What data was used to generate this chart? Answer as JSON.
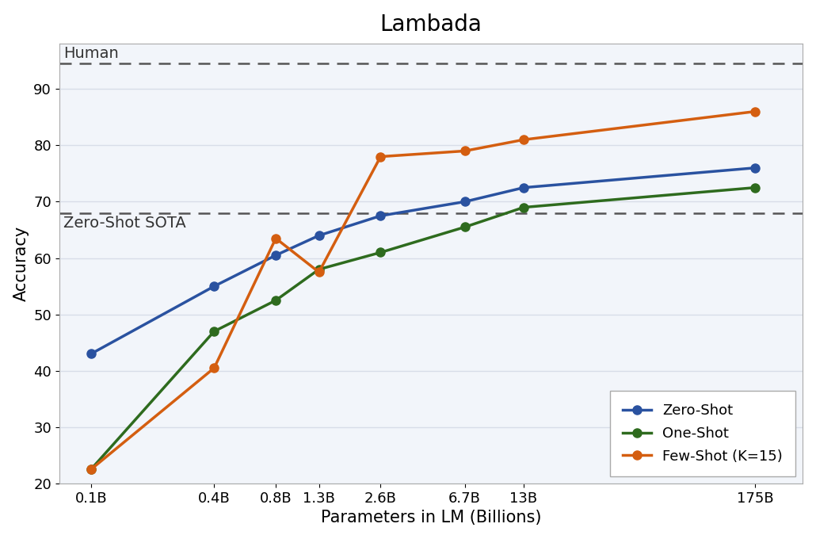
{
  "title": "Lambada",
  "xlabel": "Parameters in LM (Billions)",
  "ylabel": "Accuracy",
  "x_labels": [
    "0.1B",
    "0.4B",
    "0.8B",
    "1.3B",
    "2.6B",
    "6.7B",
    "13B",
    "175B"
  ],
  "x_values": [
    0.1,
    0.4,
    0.8,
    1.3,
    2.6,
    6.7,
    13,
    175
  ],
  "zero_shot": [
    43,
    55,
    60.5,
    64,
    67.5,
    70,
    72.5,
    76
  ],
  "one_shot": [
    22.5,
    47,
    52.5,
    58,
    61,
    65.5,
    69,
    72.5
  ],
  "few_shot": [
    22.5,
    40.5,
    63.5,
    57.5,
    78,
    79,
    81,
    86
  ],
  "human_level": 94.5,
  "zs_sota": 68.0,
  "zero_shot_color": "#2a52a0",
  "one_shot_color": "#2e6b1e",
  "few_shot_color": "#d45e10",
  "human_label": "Human",
  "sota_label": "Zero-Shot SOTA",
  "legend_labels": [
    "Zero-Shot",
    "One-Shot",
    "Few-Shot (K=15)"
  ],
  "ylim": [
    20,
    98
  ],
  "background_color": "#f2f5fa",
  "grid_color": "#d8dde8",
  "title_fontsize": 20,
  "label_fontsize": 14,
  "tick_fontsize": 13,
  "legend_fontsize": 13,
  "linewidth": 2.5,
  "markersize": 8
}
